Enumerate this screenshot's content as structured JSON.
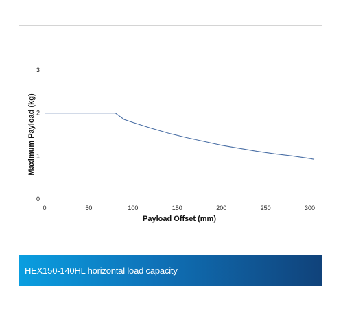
{
  "chart_data": {
    "type": "line",
    "title": "",
    "xlabel": "Payload Offset (mm)",
    "ylabel": "Maximum Payload (kg)",
    "xlim": [
      0,
      305
    ],
    "ylim": [
      0,
      3
    ],
    "xticks": [
      0,
      50,
      100,
      150,
      200,
      250,
      300
    ],
    "yticks": [
      0,
      1,
      2,
      3
    ],
    "grid": false,
    "legend": "none",
    "series": [
      {
        "color": "#4a6fa5",
        "x": [
          0,
          80,
          90,
          100,
          120,
          140,
          160,
          180,
          200,
          220,
          240,
          260,
          280,
          300,
          305
        ],
        "y": [
          2,
          2,
          1.85,
          1.78,
          1.65,
          1.53,
          1.43,
          1.34,
          1.25,
          1.18,
          1.11,
          1.05,
          1.0,
          0.94,
          0.92
        ]
      }
    ]
  },
  "caption": {
    "text": "HEX150-140HL horizontal load capacity"
  }
}
